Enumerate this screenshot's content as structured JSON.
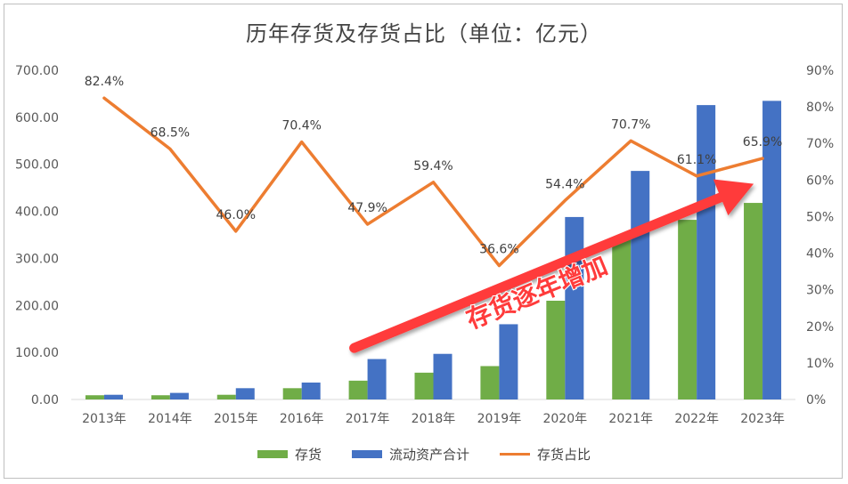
{
  "chart_data": {
    "type": "bar+line",
    "title": "历年存货及存货占比（单位：亿元）",
    "categories": [
      "2013年",
      "2014年",
      "2015年",
      "2016年",
      "2017年",
      "2018年",
      "2019年",
      "2020年",
      "2021年",
      "2022年",
      "2023年"
    ],
    "series": [
      {
        "name": "存货",
        "type": "bar",
        "axis": "left",
        "color": "#70AD47",
        "values": [
          9,
          9,
          10,
          24,
          40,
          57,
          71,
          210,
          340,
          382,
          418
        ]
      },
      {
        "name": "流动资产合计",
        "type": "bar",
        "axis": "left",
        "color": "#4472C4",
        "values": [
          10,
          14,
          24,
          36,
          86,
          97,
          160,
          388,
          486,
          626,
          635
        ]
      },
      {
        "name": "存货占比",
        "type": "line",
        "axis": "right",
        "color": "#ED7D31",
        "values": [
          82.4,
          68.5,
          46.0,
          70.4,
          47.9,
          59.4,
          36.6,
          54.4,
          70.7,
          61.1,
          65.9
        ],
        "labels": [
          "82.4%",
          "68.5%",
          "46.0%",
          "70.4%",
          "47.9%",
          "59.4%",
          "36.6%",
          "54.4%",
          "70.7%",
          "61.1%",
          "65.9%"
        ]
      }
    ],
    "y_left": {
      "ylim": [
        0,
        700
      ],
      "ticks": [
        "0.00",
        "100.00",
        "200.00",
        "300.00",
        "400.00",
        "500.00",
        "600.00",
        "700.00"
      ]
    },
    "y_right": {
      "ylim": [
        0,
        90
      ],
      "ticks": [
        "0%",
        "10%",
        "20%",
        "30%",
        "40%",
        "50%",
        "60%",
        "70%",
        "80%",
        "90%"
      ]
    },
    "grid": false,
    "legend_position": "bottom",
    "annotation": {
      "text": "存货逐年增加",
      "color": "#FF3B3B",
      "type": "arrow",
      "from": {
        "category": "2017年",
        "value": 100
      },
      "to": {
        "category": "2023年",
        "value": 470
      }
    }
  }
}
